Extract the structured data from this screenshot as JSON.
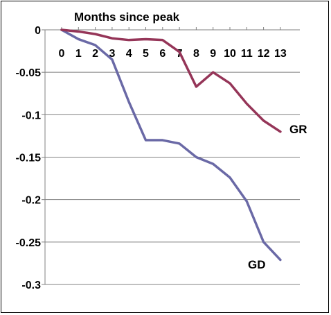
{
  "chart_data": {
    "type": "line",
    "title": "",
    "xlabel": "Months since peak",
    "ylabel": "",
    "x": [
      0,
      1,
      2,
      3,
      4,
      5,
      6,
      7,
      8,
      9,
      10,
      11,
      12,
      13
    ],
    "ylim": [
      -0.3,
      0
    ],
    "yticks": [
      0,
      -0.05,
      -0.1,
      -0.15,
      -0.2,
      -0.25,
      -0.3
    ],
    "ytick_labels": [
      "0",
      "-0.05",
      "-0.1",
      "-0.15",
      "-0.2",
      "-0.25",
      "-0.3"
    ],
    "grid": true,
    "series": [
      {
        "name": "GR",
        "color": "#953558",
        "values": [
          0,
          -0.002,
          -0.005,
          -0.01,
          -0.012,
          -0.011,
          -0.012,
          -0.026,
          -0.067,
          -0.05,
          -0.063,
          -0.087,
          -0.107,
          -0.12
        ]
      },
      {
        "name": "GD",
        "color": "#6A69A6",
        "values": [
          0,
          -0.011,
          -0.018,
          -0.035,
          -0.085,
          -0.13,
          -0.13,
          -0.134,
          -0.15,
          -0.158,
          -0.174,
          -0.202,
          -0.25,
          -0.271
        ]
      }
    ]
  }
}
